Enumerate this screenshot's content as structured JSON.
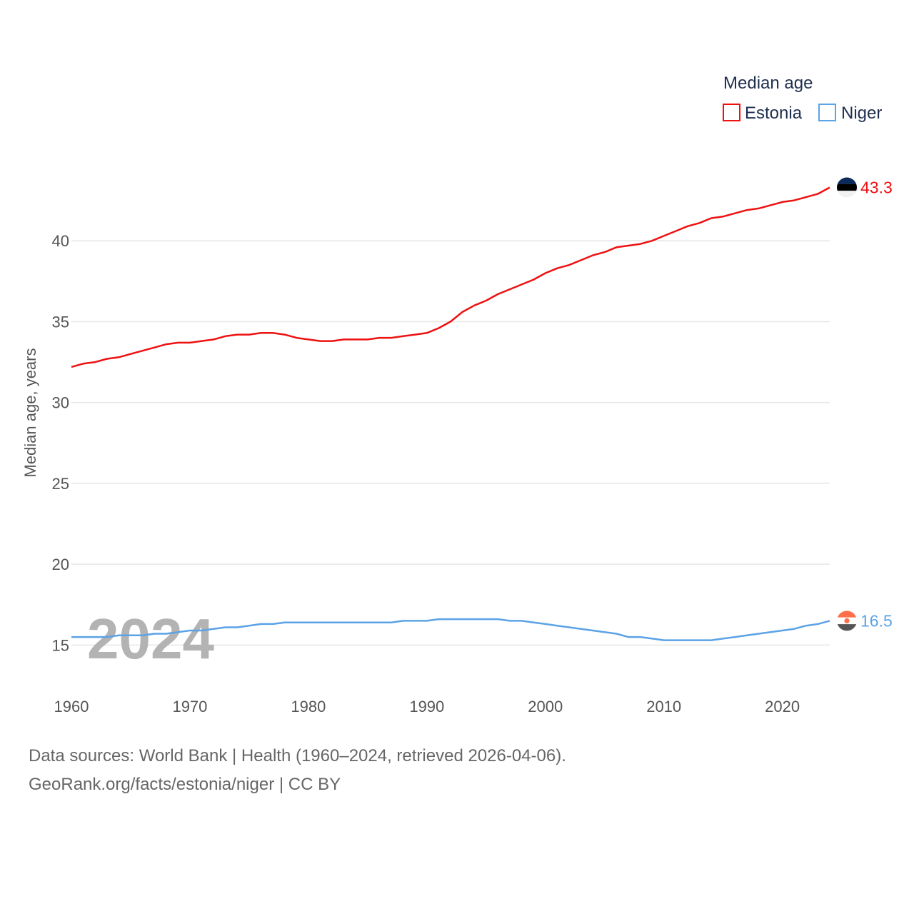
{
  "chart_data": {
    "type": "line",
    "legend_title": "Median age",
    "legend_placement": "top-right",
    "ylabel": "Median age, years",
    "xlabel": "",
    "ylim": [
      12.5,
      46.5
    ],
    "xlim": [
      1960,
      2024
    ],
    "y_ticks": [
      15,
      20,
      25,
      30,
      35,
      40
    ],
    "x_ticks": [
      1960,
      1970,
      1980,
      1990,
      2000,
      2010,
      2020
    ],
    "watermark_year": "2024",
    "grid": true,
    "x": [
      1960,
      1961,
      1962,
      1963,
      1964,
      1965,
      1966,
      1967,
      1968,
      1969,
      1970,
      1971,
      1972,
      1973,
      1974,
      1975,
      1976,
      1977,
      1978,
      1979,
      1980,
      1981,
      1982,
      1983,
      1984,
      1985,
      1986,
      1987,
      1988,
      1989,
      1990,
      1991,
      1992,
      1993,
      1994,
      1995,
      1996,
      1997,
      1998,
      1999,
      2000,
      2001,
      2002,
      2003,
      2004,
      2005,
      2006,
      2007,
      2008,
      2009,
      2010,
      2011,
      2012,
      2013,
      2014,
      2015,
      2016,
      2017,
      2018,
      2019,
      2020,
      2021,
      2022,
      2023,
      2024
    ],
    "series": [
      {
        "name": "Estonia",
        "color": "#ee1111",
        "end_label": "43.3",
        "flag": "estonia-flag",
        "values": [
          32.2,
          32.4,
          32.5,
          32.7,
          32.8,
          33.0,
          33.2,
          33.4,
          33.6,
          33.7,
          33.7,
          33.8,
          33.9,
          34.1,
          34.2,
          34.2,
          34.3,
          34.3,
          34.2,
          34.0,
          33.9,
          33.8,
          33.8,
          33.9,
          33.9,
          33.9,
          34.0,
          34.0,
          34.1,
          34.2,
          34.3,
          34.6,
          35.0,
          35.6,
          36.0,
          36.3,
          36.7,
          37.0,
          37.3,
          37.6,
          38.0,
          38.3,
          38.5,
          38.8,
          39.1,
          39.3,
          39.6,
          39.7,
          39.8,
          40.0,
          40.3,
          40.6,
          40.9,
          41.1,
          41.4,
          41.5,
          41.7,
          41.9,
          42.0,
          42.2,
          42.4,
          42.5,
          42.7,
          42.9,
          43.3
        ]
      },
      {
        "name": "Niger",
        "color": "#5ba2e6",
        "end_label": "16.5",
        "flag": "niger-flag",
        "values": [
          15.5,
          15.5,
          15.5,
          15.5,
          15.6,
          15.6,
          15.6,
          15.7,
          15.7,
          15.8,
          15.9,
          15.9,
          16.0,
          16.1,
          16.1,
          16.2,
          16.3,
          16.3,
          16.4,
          16.4,
          16.4,
          16.4,
          16.4,
          16.4,
          16.4,
          16.4,
          16.4,
          16.4,
          16.5,
          16.5,
          16.5,
          16.6,
          16.6,
          16.6,
          16.6,
          16.6,
          16.6,
          16.5,
          16.5,
          16.4,
          16.3,
          16.2,
          16.1,
          16.0,
          15.9,
          15.8,
          15.7,
          15.5,
          15.5,
          15.4,
          15.3,
          15.3,
          15.3,
          15.3,
          15.3,
          15.4,
          15.5,
          15.6,
          15.7,
          15.8,
          15.9,
          16.0,
          16.2,
          16.3,
          16.5
        ]
      }
    ],
    "source_line_1": "Data sources: World Bank | Health (1960–2024, retrieved 2026-04-06).",
    "source_line_2": "GeoRank.org/facts/estonia/niger | CC BY"
  }
}
